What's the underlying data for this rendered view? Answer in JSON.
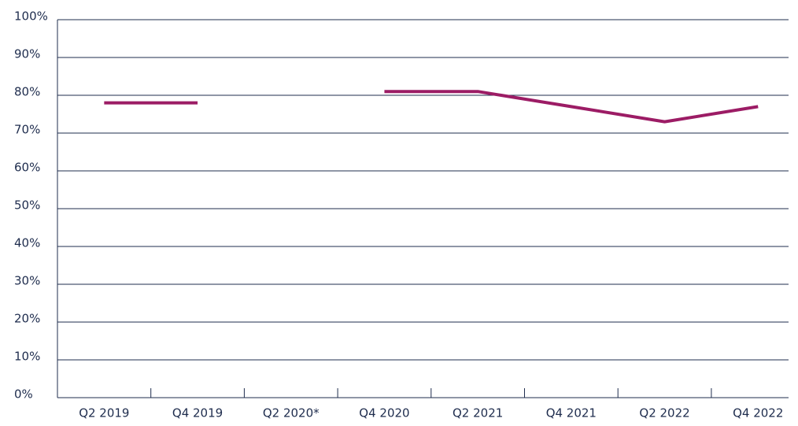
{
  "chart_data": {
    "type": "line",
    "categories": [
      "Q2 2019",
      "Q4 2019",
      "Q2 2020*",
      "Q4 2020",
      "Q2 2021",
      "Q4 2021",
      "Q2 2022",
      "Q4 2022"
    ],
    "series": [
      {
        "color": "#9c1c65",
        "values": [
          78,
          78,
          null,
          81,
          81,
          77,
          73,
          77
        ]
      }
    ],
    "ylim": [
      0,
      100
    ],
    "yticks": [
      {
        "value": 0,
        "label": "0%"
      },
      {
        "value": 10,
        "label": "10%"
      },
      {
        "value": 20,
        "label": "20%"
      },
      {
        "value": 30,
        "label": "30%"
      },
      {
        "value": 40,
        "label": "40%"
      },
      {
        "value": 50,
        "label": "50%"
      },
      {
        "value": 60,
        "label": "60%"
      },
      {
        "value": 70,
        "label": "70%"
      },
      {
        "value": 80,
        "label": "80%"
      },
      {
        "value": 90,
        "label": "90%"
      },
      {
        "value": 100,
        "label": "100%"
      }
    ],
    "grid": true
  }
}
